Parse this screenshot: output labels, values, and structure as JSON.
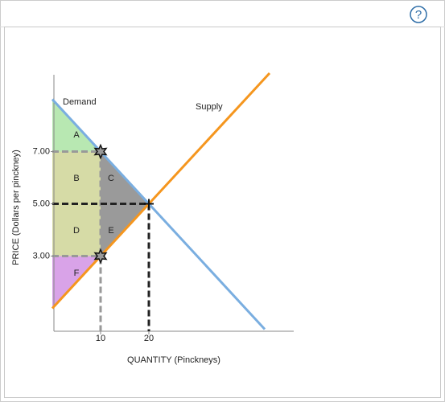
{
  "toolbar": {
    "help": "?"
  },
  "chart_data": {
    "type": "line",
    "xlabel": "QUANTITY (Pinckneys)",
    "ylabel": "PRICE (Dollars per pinckney)",
    "xlim": [
      0,
      50
    ],
    "ylim": [
      0,
      10
    ],
    "xticks": [
      10,
      20
    ],
    "yticks": [
      {
        "value": 3,
        "label": "3.00"
      },
      {
        "value": 5,
        "label": "5.00"
      },
      {
        "value": 7,
        "label": "7.00"
      }
    ],
    "series": [
      {
        "name": "Demand",
        "color": "#7aaee0",
        "x": [
          0,
          44
        ],
        "values": [
          9,
          0.2
        ]
      },
      {
        "name": "Supply",
        "color": "#f5961e",
        "x": [
          0,
          45
        ],
        "values": [
          1,
          10
        ]
      }
    ],
    "regions": [
      {
        "label": "A",
        "color": "#b8e8b2"
      },
      {
        "label": "B",
        "color": "#d6dba6"
      },
      {
        "label": "C",
        "color": "#9a9a9a"
      },
      {
        "label": "D",
        "color": "#d6dba6"
      },
      {
        "label": "E",
        "color": "#9a9a9a"
      },
      {
        "label": "F",
        "color": "#d9a3e8"
      }
    ]
  }
}
